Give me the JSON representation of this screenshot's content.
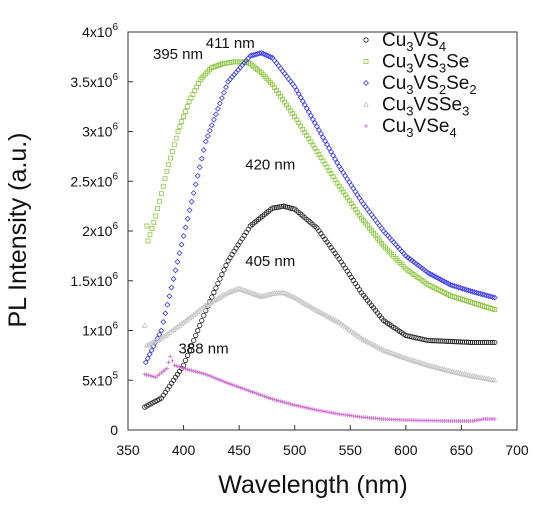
{
  "chart_data": {
    "type": "scatter",
    "xlabel": "Wavelength (nm)",
    "ylabel": "PL Intensity (a.u.)",
    "xlim": [
      350,
      700
    ],
    "ylim": [
      0,
      4000000
    ],
    "x_ticks": [
      "350",
      "400",
      "450",
      "500",
      "550",
      "600",
      "650",
      "700"
    ],
    "y_ticks": [
      {
        "value": 0,
        "mantissa": "0",
        "exp": ""
      },
      {
        "value": 500000,
        "mantissa": "5x10",
        "exp": "5"
      },
      {
        "value": 1000000,
        "mantissa": "1x10",
        "exp": "6"
      },
      {
        "value": 1500000,
        "mantissa": "1.5x10",
        "exp": "6"
      },
      {
        "value": 2000000,
        "mantissa": "2x10",
        "exp": "6"
      },
      {
        "value": 2500000,
        "mantissa": "2.5x10",
        "exp": "6"
      },
      {
        "value": 3000000,
        "mantissa": "3x10",
        "exp": "6"
      },
      {
        "value": 3500000,
        "mantissa": "3.5x10",
        "exp": "6"
      },
      {
        "value": 4000000,
        "mantissa": "4x10",
        "exp": "6"
      }
    ],
    "legend_position": "top-right",
    "series": [
      {
        "name": "Cu3VS4",
        "legend": {
          "base": "Cu",
          "parts": [
            [
              "3",
              "sub"
            ],
            [
              "VS",
              ""
            ],
            [
              "4",
              "sub"
            ]
          ]
        },
        "color": "#222222",
        "marker": "circle",
        "x": [
          365,
          380,
          400,
          420,
          440,
          460,
          480,
          490,
          500,
          520,
          540,
          560,
          580,
          600,
          620,
          640,
          660,
          680
        ],
        "y": [
          230000,
          320000,
          650000,
          1200000,
          1700000,
          2050000,
          2230000,
          2250000,
          2220000,
          2030000,
          1720000,
          1380000,
          1100000,
          950000,
          900000,
          890000,
          880000,
          880000
        ]
      },
      {
        "name": "Cu3VS3Se",
        "legend": {
          "base": "Cu",
          "parts": [
            [
              "3",
              "sub"
            ],
            [
              "VS",
              ""
            ],
            [
              "3",
              "sub"
            ],
            [
              "Se",
              ""
            ]
          ]
        },
        "color": "#8cc63f",
        "marker": "square",
        "x": [
          367,
          368,
          375,
          385,
          395,
          405,
          415,
          425,
          435,
          445,
          455,
          460,
          470,
          480,
          500,
          520,
          540,
          560,
          580,
          600,
          620,
          640,
          660,
          680
        ],
        "y": [
          2050000,
          1900000,
          2150000,
          2600000,
          3000000,
          3300000,
          3520000,
          3640000,
          3680000,
          3700000,
          3700000,
          3680000,
          3590000,
          3470000,
          3150000,
          2800000,
          2450000,
          2130000,
          1850000,
          1620000,
          1460000,
          1350000,
          1280000,
          1210000
        ]
      },
      {
        "name": "Cu3VS2Se2",
        "legend": {
          "base": "Cu",
          "parts": [
            [
              "3",
              "sub"
            ],
            [
              "VS",
              ""
            ],
            [
              "2",
              "sub"
            ],
            [
              "Se",
              ""
            ],
            [
              "2",
              "sub"
            ]
          ]
        },
        "color": "#3a3af0",
        "marker": "diamond",
        "x": [
          366,
          380,
          400,
          420,
          440,
          460,
          470,
          480,
          500,
          520,
          540,
          560,
          580,
          600,
          620,
          640,
          660,
          680
        ],
        "y": [
          680000,
          1000000,
          1950000,
          2900000,
          3500000,
          3760000,
          3790000,
          3740000,
          3450000,
          3050000,
          2650000,
          2300000,
          2000000,
          1750000,
          1580000,
          1460000,
          1390000,
          1330000
        ]
      },
      {
        "name": "Cu3VSSe3",
        "legend": {
          "base": "Cu",
          "parts": [
            [
              "3",
              "sub"
            ],
            [
              "VSSe",
              ""
            ],
            [
              "3",
              "sub"
            ]
          ]
        },
        "color": "#c4c4c4",
        "marker": "triangle",
        "x": [
          365,
          367,
          380,
          400,
          420,
          440,
          450,
          460,
          470,
          480,
          490,
          500,
          520,
          540,
          560,
          580,
          600,
          620,
          640,
          660,
          680
        ],
        "y": [
          1050000,
          850000,
          920000,
          1080000,
          1250000,
          1380000,
          1420000,
          1380000,
          1340000,
          1370000,
          1380000,
          1330000,
          1200000,
          1080000,
          920000,
          800000,
          720000,
          650000,
          590000,
          540000,
          500000
        ]
      },
      {
        "name": "Cu3VSe4",
        "legend": {
          "base": "Cu",
          "parts": [
            [
              "3",
              "sub"
            ],
            [
              "VSe",
              ""
            ],
            [
              "4",
              "sub"
            ]
          ]
        },
        "color": "#cc66cc",
        "marker": "plus",
        "x": [
          365,
          375,
          385,
          388,
          392,
          400,
          420,
          440,
          460,
          480,
          500,
          520,
          540,
          560,
          580,
          600,
          620,
          640,
          660,
          670,
          680
        ],
        "y": [
          560000,
          530000,
          620000,
          740000,
          650000,
          620000,
          560000,
          470000,
          390000,
          310000,
          250000,
          200000,
          160000,
          130000,
          110000,
          100000,
          95000,
          90000,
          90000,
          110000,
          110000
        ]
      }
    ],
    "annotations": [
      {
        "text": "395 nm",
        "x": 395,
        "y": 3730000
      },
      {
        "text": "411 nm",
        "x": 442,
        "y": 3840000
      },
      {
        "text": "420 nm",
        "x": 478,
        "y": 2620000
      },
      {
        "text": "405 nm",
        "x": 478,
        "y": 1650000
      },
      {
        "text": "388 nm",
        "x": 418,
        "y": 770000
      }
    ]
  }
}
